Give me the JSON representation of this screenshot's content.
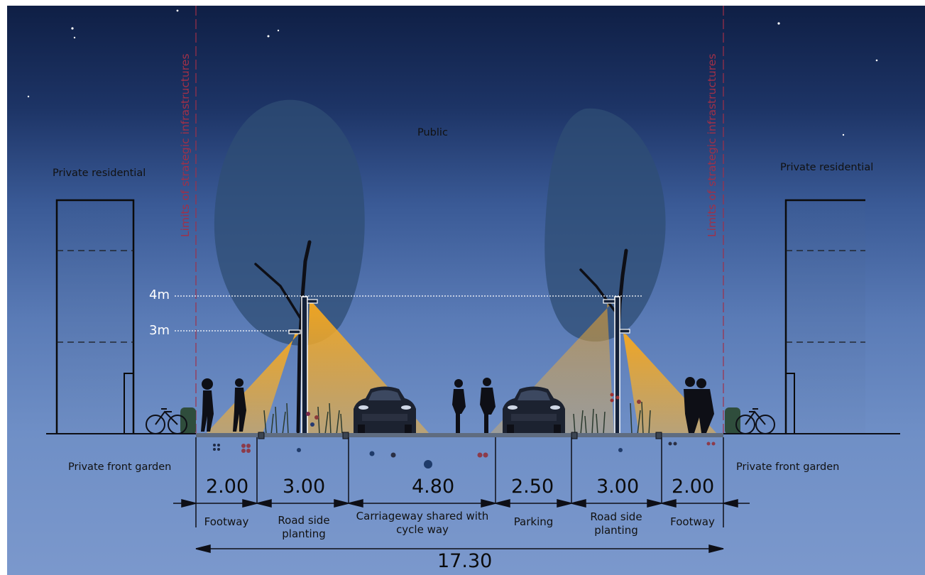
{
  "zones": {
    "public": "Public",
    "private_residential_left": "Private residential",
    "private_residential_right": "Private residential",
    "private_front_garden_left": "Private front garden",
    "private_front_garden_right": "Private front garden",
    "limits_left": "Limits of strategic infrastructures",
    "limits_right": "Limits of strategic infrastructures"
  },
  "heights": {
    "upper": "4m",
    "lower": "3m"
  },
  "segments": [
    {
      "width": "2.00",
      "name_line1": "Footway",
      "name_line2": ""
    },
    {
      "width": "3.00",
      "name_line1": "Road side",
      "name_line2": "planting"
    },
    {
      "width": "4.80",
      "name_line1": "Carriageway shared with",
      "name_line2": "cycle way"
    },
    {
      "width": "2.50",
      "name_line1": "Parking",
      "name_line2": ""
    },
    {
      "width": "3.00",
      "name_line1": "Road side",
      "name_line2": "planting"
    },
    {
      "width": "2.00",
      "name_line1": "Footway",
      "name_line2": ""
    }
  ],
  "total_width": "17.30",
  "colors": {
    "sky_top": "#0f1f45",
    "sky_bottom": "#7b98cc",
    "light_cone": "#f5a623",
    "limit_line": "#a03048",
    "tree_canopy": "#2e4a6e"
  },
  "icons": [
    "moon-icon",
    "star-icon",
    "tree-icon",
    "street-lamp-icon",
    "car-icon",
    "bicycle-icon",
    "pedestrian-icon",
    "cyclist-icon",
    "building-icon"
  ]
}
